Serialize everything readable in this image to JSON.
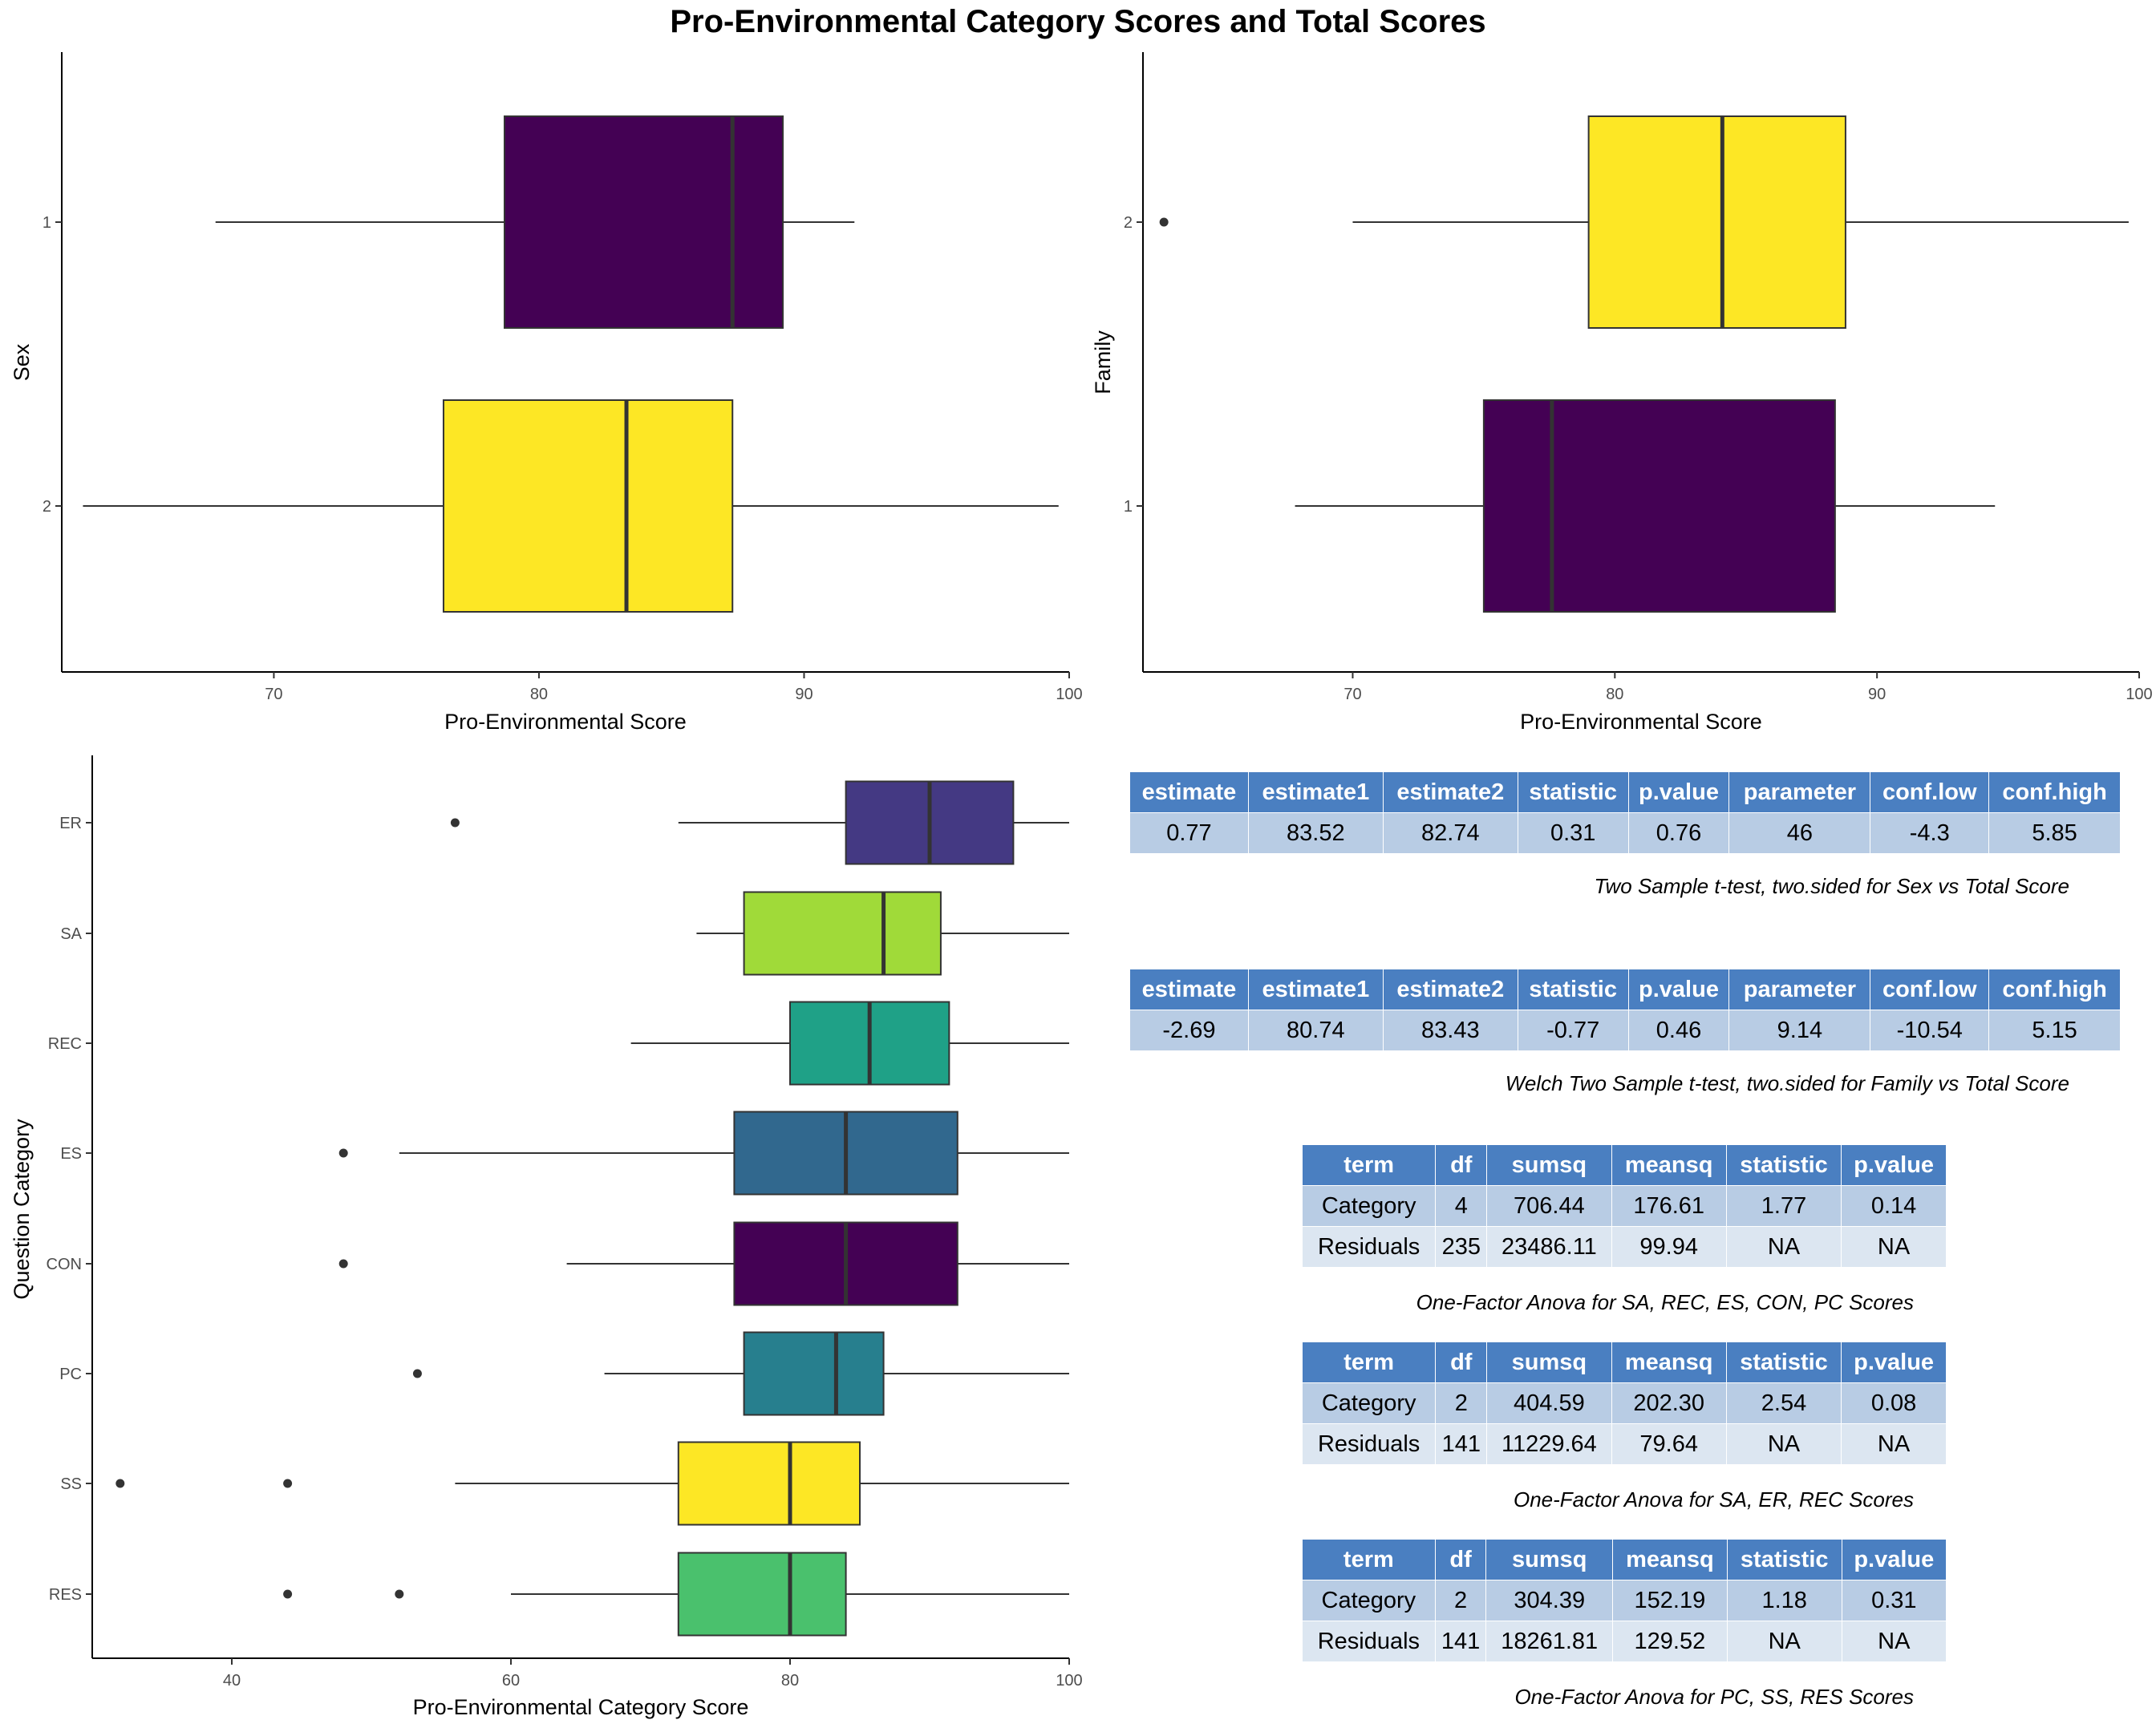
{
  "title": "Pro-Environmental Category Scores and Total Scores",
  "colors": {
    "purple": "#440154",
    "yellow": "#fde725",
    "indigo": "#443983",
    "lime": "#a0da39",
    "teal": "#1fa187",
    "steel": "#31688e",
    "petrol": "#277f8e",
    "green": "#4ac16d",
    "box_line": "#333333"
  },
  "chart_data": [
    {
      "type": "boxplot",
      "orientation": "horizontal",
      "xlabel": "Pro-Environmental Score",
      "ylabel": "Sex",
      "xlim": [
        62,
        100
      ],
      "xticks": [
        70,
        80,
        90,
        100
      ],
      "categories": [
        "1",
        "2"
      ],
      "boxes": [
        {
          "category": "1",
          "min": 67.8,
          "q1": 78.7,
          "median": 87.3,
          "q3": 89.2,
          "max": 91.9,
          "outliers": [],
          "color": "#440154"
        },
        {
          "category": "2",
          "min": 62.8,
          "q1": 76.4,
          "median": 83.3,
          "q3": 87.3,
          "max": 99.6,
          "outliers": [],
          "color": "#fde725"
        }
      ]
    },
    {
      "type": "boxplot",
      "orientation": "horizontal",
      "xlabel": "Pro-Environmental Score",
      "ylabel": "Family",
      "xlim": [
        62,
        100
      ],
      "xticks": [
        70,
        80,
        90,
        100
      ],
      "categories": [
        "2",
        "1"
      ],
      "boxes": [
        {
          "category": "2",
          "min": 70.0,
          "q1": 79.0,
          "median": 84.1,
          "q3": 88.8,
          "max": 99.6,
          "outliers": [
            62.8
          ],
          "color": "#fde725"
        },
        {
          "category": "1",
          "min": 67.8,
          "q1": 75.0,
          "median": 77.6,
          "q3": 88.4,
          "max": 94.5,
          "outliers": [],
          "color": "#440154"
        }
      ]
    },
    {
      "type": "boxplot",
      "orientation": "horizontal",
      "xlabel": "Pro-Environmental Category Score",
      "ylabel": "Question Category",
      "xlim": [
        30,
        100
      ],
      "xticks": [
        40,
        60,
        80,
        100
      ],
      "categories": [
        "ER",
        "SA",
        "REC",
        "ES",
        "CON",
        "PC",
        "SS",
        "RES"
      ],
      "boxes": [
        {
          "category": "ER",
          "min": 72,
          "q1": 84,
          "median": 90,
          "q3": 96,
          "max": 100,
          "outliers": [
            56
          ],
          "color": "#443983"
        },
        {
          "category": "SA",
          "min": 73.3,
          "q1": 76.7,
          "median": 86.7,
          "q3": 90.8,
          "max": 100,
          "outliers": [],
          "color": "#a0da39"
        },
        {
          "category": "REC",
          "min": 68.6,
          "q1": 80,
          "median": 85.7,
          "q3": 91.4,
          "max": 100,
          "outliers": [],
          "color": "#1fa187"
        },
        {
          "category": "ES",
          "min": 52,
          "q1": 76,
          "median": 84,
          "q3": 92,
          "max": 100,
          "outliers": [
            48
          ],
          "color": "#31688e"
        },
        {
          "category": "CON",
          "min": 64,
          "q1": 76,
          "median": 84,
          "q3": 92,
          "max": 100,
          "outliers": [
            48
          ],
          "color": "#440154"
        },
        {
          "category": "PC",
          "min": 66.7,
          "q1": 76.7,
          "median": 83.3,
          "q3": 86.7,
          "max": 100,
          "outliers": [
            53.3
          ],
          "color": "#277f8e"
        },
        {
          "category": "SS",
          "min": 56,
          "q1": 72,
          "median": 80,
          "q3": 85,
          "max": 100,
          "outliers": [
            32,
            44
          ],
          "color": "#fde725"
        },
        {
          "category": "RES",
          "min": 60,
          "q1": 72,
          "median": 80,
          "q3": 84,
          "max": 100,
          "outliers": [
            44,
            52
          ],
          "color": "#4ac16d"
        }
      ]
    }
  ],
  "tables": {
    "ttest_sex": {
      "headers": [
        "estimate",
        "estimate1",
        "estimate2",
        "statistic",
        "p.value",
        "parameter",
        "conf.low",
        "conf.high"
      ],
      "rows": [
        [
          "0.77",
          "83.52",
          "82.74",
          "0.31",
          "0.76",
          "46",
          "-4.3",
          "5.85"
        ]
      ],
      "caption": "Two Sample t-test, two.sided for Sex vs Total Score"
    },
    "ttest_family": {
      "headers": [
        "estimate",
        "estimate1",
        "estimate2",
        "statistic",
        "p.value",
        "parameter",
        "conf.low",
        "conf.high"
      ],
      "rows": [
        [
          "-2.69",
          "80.74",
          "83.43",
          "-0.77",
          "0.46",
          "9.14",
          "-10.54",
          "5.15"
        ]
      ],
      "caption": "Welch Two Sample t-test, two.sided for Family vs Total Score"
    },
    "anova1": {
      "headers": [
        "term",
        "df",
        "sumsq",
        "meansq",
        "statistic",
        "p.value"
      ],
      "rows": [
        [
          "Category",
          "4",
          "706.44",
          "176.61",
          "1.77",
          "0.14"
        ],
        [
          "Residuals",
          "235",
          "23486.11",
          "99.94",
          "NA",
          "NA"
        ]
      ],
      "caption": "One-Factor Anova for SA, REC, ES, CON, PC Scores"
    },
    "anova2": {
      "headers": [
        "term",
        "df",
        "sumsq",
        "meansq",
        "statistic",
        "p.value"
      ],
      "rows": [
        [
          "Category",
          "2",
          "404.59",
          "202.30",
          "2.54",
          "0.08"
        ],
        [
          "Residuals",
          "141",
          "11229.64",
          "79.64",
          "NA",
          "NA"
        ]
      ],
      "caption": "One-Factor Anova for SA, ER, REC Scores"
    },
    "anova3": {
      "headers": [
        "term",
        "df",
        "sumsq",
        "meansq",
        "statistic",
        "p.value"
      ],
      "rows": [
        [
          "Category",
          "2",
          "304.39",
          "152.19",
          "1.18",
          "0.31"
        ],
        [
          "Residuals",
          "141",
          "18261.81",
          "129.52",
          "NA",
          "NA"
        ]
      ],
      "caption": "One-Factor Anova for PC, SS, RES Scores"
    }
  }
}
